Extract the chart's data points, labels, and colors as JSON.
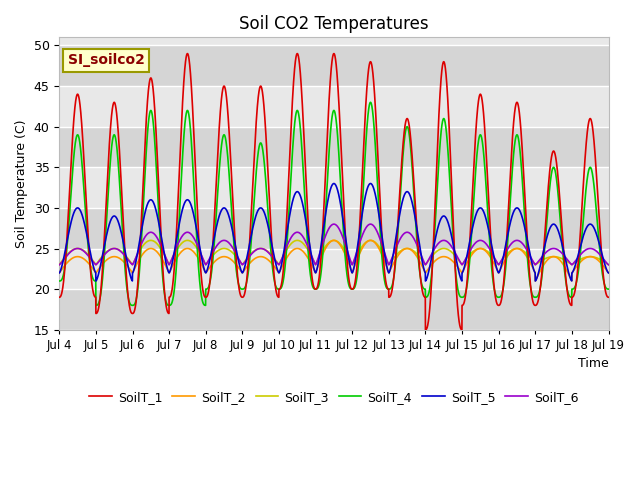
{
  "title": "Soil CO2 Temperatures",
  "ylabel": "Soil Temperature (C)",
  "xlabel": "Time",
  "ylim": [
    15,
    51
  ],
  "yticks": [
    15,
    20,
    25,
    30,
    35,
    40,
    45,
    50
  ],
  "annotation": "SI_soilco2",
  "xtick_labels": [
    "Jul 4",
    "Jul 5",
    "Jul 6",
    "Jul 7",
    "Jul 8",
    "Jul 9",
    "Jul 10",
    "Jul 11",
    "Jul 12",
    "Jul 13",
    "Jul 14",
    "Jul 15",
    "Jul 16",
    "Jul 17",
    "Jul 18",
    "Jul 19"
  ],
  "series": {
    "SoilT_1": {
      "color": "#dd0000",
      "lw": 1.2
    },
    "SoilT_2": {
      "color": "#ff9900",
      "lw": 1.2
    },
    "SoilT_3": {
      "color": "#cccc00",
      "lw": 1.2
    },
    "SoilT_4": {
      "color": "#00cc00",
      "lw": 1.2
    },
    "SoilT_5": {
      "color": "#0000cc",
      "lw": 1.2
    },
    "SoilT_6": {
      "color": "#9900cc",
      "lw": 1.2
    }
  },
  "band_color_dark": "#d8d8d8",
  "band_color_light": "#e8e8e8",
  "plot_bg": "#e8e8e8",
  "grid_color": "#ffffff"
}
